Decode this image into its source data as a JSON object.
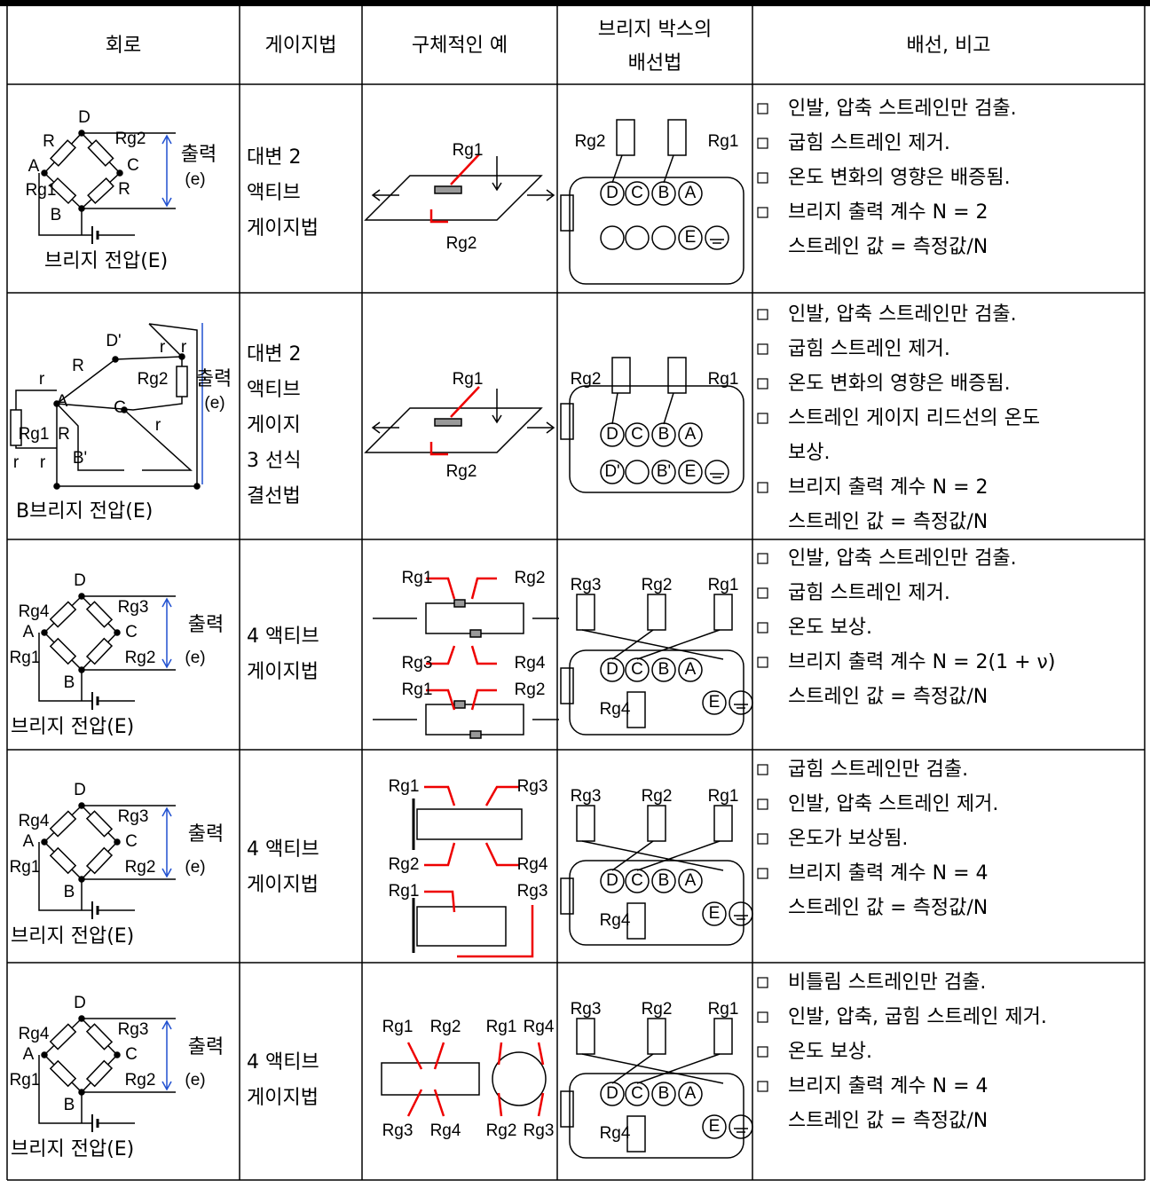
{
  "table": {
    "headers": [
      [
        "회로"
      ],
      [
        "게이지법"
      ],
      [
        "구체적인 예"
      ],
      [
        "브리지 박스의",
        "배선법"
      ],
      [
        "배선, 비고"
      ]
    ],
    "rows": [
      {
        "circuit": [
          "D",
          "R",
          "Rg2",
          "A",
          "C",
          "Rg1",
          "R",
          "B",
          "출력",
          "(e)",
          "브리지 전압(E)"
        ],
        "method": [
          "대변 2",
          "액티브",
          "게이지법"
        ],
        "example": [
          "Rg1",
          "Rg2"
        ],
        "wiring": [
          "Rg2",
          "Rg1",
          "D",
          "C",
          "B",
          "A",
          "E"
        ],
        "notes": [
          [
            "인발, 압축 스트레인만 검출."
          ],
          [
            "굽힘 스트레인 제거."
          ],
          [
            "온도 변화의 영향은 배증됨."
          ],
          [
            "브리지 출력 계수 N = 2",
            "스트레인 값 = 측정값/N"
          ]
        ]
      },
      {
        "circuit": [
          "D'",
          "r",
          "r",
          "R",
          "Rg2",
          "출력",
          "(e)",
          "r",
          "A",
          "C",
          "Rg1",
          "R",
          "r",
          "B'",
          "r",
          "r",
          "B브리지 전압(E)"
        ],
        "method": [
          "대변 2",
          "액티브",
          "게이지",
          "3 선식",
          "결선법"
        ],
        "example": [
          "Rg1",
          "Rg2"
        ],
        "wiring": [
          "Rg2",
          "Rg1",
          "D",
          "C",
          "B",
          "A",
          "D'",
          "B'",
          "E"
        ],
        "notes": [
          [
            "인발, 압축 스트레인만 검출."
          ],
          [
            "굽힘 스트레인 제거."
          ],
          [
            "온도 변화의 영향은 배증됨."
          ],
          [
            "스트레인 게이지 리드선의 온도",
            "보상."
          ],
          [
            "브리지 출력 계수 N = 2",
            "스트레인 값 = 측정값/N"
          ]
        ]
      },
      {
        "circuit": [
          "D",
          "Rg4",
          "Rg3",
          "A",
          "C",
          "Rg1",
          "Rg2",
          "B",
          "출력",
          "(e)",
          "브리지 전압(E)"
        ],
        "method": [
          "4 액티브",
          "게이지법"
        ],
        "example": [
          "Rg1",
          "Rg2",
          "Rg3",
          "Rg4",
          "Rg1",
          "Rg2"
        ],
        "wiring": [
          "Rg3",
          "Rg2",
          "Rg1",
          "D",
          "C",
          "B",
          "A",
          "Rg4",
          "E"
        ],
        "notes": [
          [
            "인발, 압축 스트레인만 검출."
          ],
          [
            "굽힘 스트레인 제거."
          ],
          [
            "온도 보상."
          ],
          [
            "브리지 출력 계수 N = 2(1 + ν)",
            "스트레인 값 = 측정값/N"
          ]
        ]
      },
      {
        "circuit": [
          "D",
          "Rg4",
          "Rg3",
          "A",
          "C",
          "Rg1",
          "Rg2",
          "B",
          "출력",
          "(e)",
          "브리지 전압(E)"
        ],
        "method": [
          "4 액티브",
          "게이지법"
        ],
        "example": [
          "Rg1",
          "Rg3",
          "Rg2",
          "Rg4",
          "Rg1",
          "Rg3"
        ],
        "wiring": [
          "Rg3",
          "Rg2",
          "Rg1",
          "D",
          "C",
          "B",
          "A",
          "Rg4",
          "E"
        ],
        "notes": [
          [
            "굽힘 스트레인만 검출."
          ],
          [
            "인발, 압축 스트레인 제거."
          ],
          [
            "온도가 보상됨."
          ],
          [
            "브리지 출력 계수 N = 4",
            "스트레인 값 = 측정값/N"
          ]
        ]
      },
      {
        "circuit": [
          "D",
          "Rg4",
          "Rg3",
          "A",
          "C",
          "Rg1",
          "Rg2",
          "B",
          "출력",
          "(e)",
          "브리지 전압(E)"
        ],
        "method": [
          "4 액티브",
          "게이지법"
        ],
        "example": [
          "Rg1",
          "Rg2",
          "Rg1",
          "Rg4",
          "Rg3",
          "Rg4",
          "Rg2",
          "Rg3"
        ],
        "wiring": [
          "Rg3",
          "Rg2",
          "Rg1",
          "D",
          "C",
          "B",
          "A",
          "Rg4",
          "E"
        ],
        "notes": [
          [
            "비틀림 스트레인만 검출."
          ],
          [
            "인발, 압축, 굽힘 스트레인 제거."
          ],
          [
            "온도 보상."
          ],
          [
            "브리지 출력 계수 N = 4",
            "스트레인 값 = 측정값/N"
          ]
        ]
      }
    ]
  }
}
